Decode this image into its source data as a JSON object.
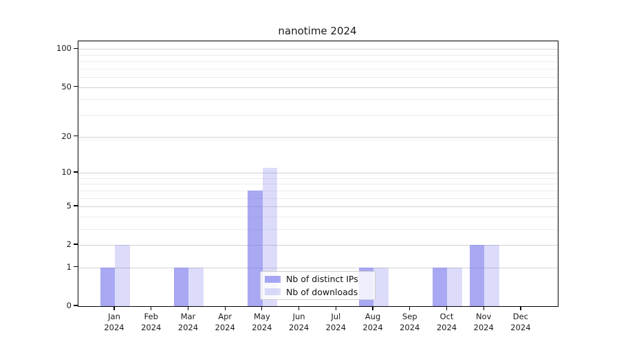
{
  "chart_data": {
    "type": "bar",
    "title": "nanotime 2024",
    "categories": [
      "Jan",
      "Feb",
      "Mar",
      "Apr",
      "May",
      "Jun",
      "Jul",
      "Aug",
      "Sep",
      "Oct",
      "Nov",
      "Dec"
    ],
    "year_label": "2024",
    "series": [
      {
        "name": "Nb of distinct IPs",
        "color": "rgba(115,115,235,0.62)",
        "values": [
          1,
          0,
          1,
          0,
          7,
          0,
          0,
          1,
          0,
          1,
          2,
          0
        ]
      },
      {
        "name": "Nb of downloads",
        "color": "rgba(115,115,235,0.25)",
        "values": [
          2,
          0,
          1,
          0,
          11,
          0,
          0,
          1,
          0,
          1,
          2,
          0
        ]
      }
    ],
    "y_axis": {
      "scale": "log1p",
      "tick_labels": [
        "0",
        "1",
        "2",
        "5",
        "10",
        "20",
        "50",
        "100"
      ],
      "tick_values": [
        0,
        1,
        2,
        5,
        10,
        20,
        50,
        100
      ],
      "major_gridlines": [
        1,
        2,
        5,
        10,
        20,
        50,
        100
      ],
      "minor_gridlines": [
        3,
        4,
        6,
        7,
        8,
        9,
        19,
        30,
        40,
        60,
        70,
        80,
        90
      ],
      "ylim": [
        0,
        115
      ]
    },
    "legend": {
      "position": "lower center"
    },
    "colors": {
      "major_grid": "#d2d2d2",
      "minor_grid": "#ededed",
      "spine": "#000000",
      "text": "#1a1a1a"
    }
  }
}
